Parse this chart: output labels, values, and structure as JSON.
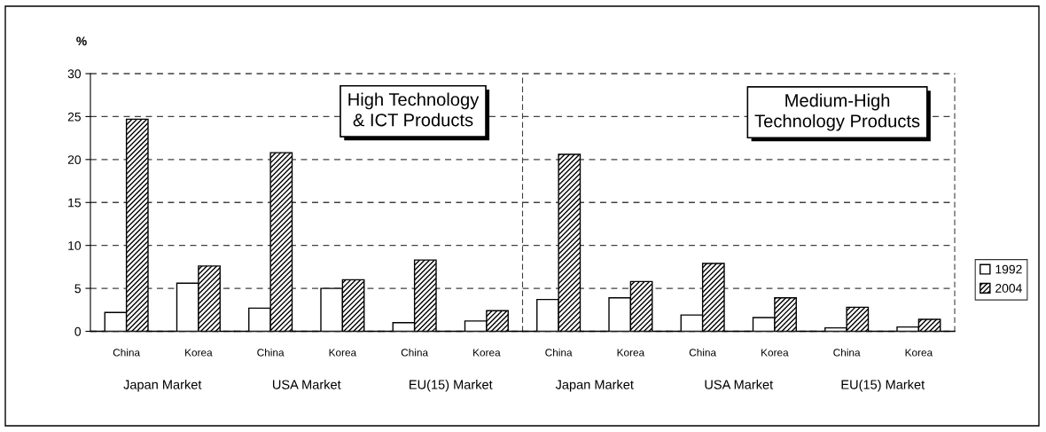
{
  "chart_data": [
    {
      "type": "bar",
      "ylabel": "%",
      "xlabel": "Japan Market",
      "categories": [
        "China",
        "Korea"
      ],
      "series": [
        {
          "color": "#ffffff",
          "values": [
            2.2,
            5.6
          ]
        },
        {
          "color": "#000000",
          "values": [
            24.7,
            7.6
          ]
        }
      ],
      "ylim": [
        0,
        30
      ],
      "yticks": [
        0,
        5,
        10,
        15,
        20,
        25,
        30
      ],
      "grid": "y"
    },
    {
      "type": "bar",
      "xlabel": "USA Market",
      "categories": [
        "China",
        "Korea"
      ],
      "series": [
        {
          "color": "#ffffff",
          "values": [
            2.7,
            5.0
          ]
        },
        {
          "color": "#000000",
          "values": [
            20.8,
            6.0
          ]
        }
      ],
      "ylim": [
        0,
        30
      ],
      "yticks": [
        0,
        5,
        10,
        15,
        20,
        25,
        30
      ],
      "grid": "y",
      "tick_labels": "x"
    },
    {
      "type": "bar",
      "title": "High Technology\n& ICT Products",
      "xlabel": "EU(15) Market",
      "categories": [
        "China",
        "Korea"
      ],
      "series": [
        {
          "color": "#ffffff",
          "values": [
            1.0,
            1.2
          ]
        },
        {
          "color": "#000000",
          "values": [
            8.3,
            2.4
          ]
        }
      ],
      "ylim": [
        0,
        30
      ],
      "yticks": [
        0,
        5,
        10,
        15,
        20,
        25,
        30
      ],
      "grid": "y",
      "tick_labels": "x"
    },
    {
      "type": "bar",
      "xlabel": "Japan Market",
      "categories": [
        "China",
        "Korea"
      ],
      "series": [
        {
          "color": "#ffffff",
          "values": [
            3.7,
            3.9
          ]
        },
        {
          "color": "#000000",
          "values": [
            20.6,
            5.8
          ]
        }
      ],
      "ylim": [
        0,
        30
      ],
      "yticks": [
        0,
        5,
        10,
        15,
        20,
        25,
        30
      ],
      "grid": "y",
      "tick_labels": "x"
    },
    {
      "type": "bar",
      "xlabel": "USA Market",
      "categories": [
        "China",
        "Korea"
      ],
      "series": [
        {
          "color": "#ffffff",
          "values": [
            1.9,
            1.6
          ]
        },
        {
          "color": "#000000",
          "values": [
            7.9,
            3.9
          ]
        }
      ],
      "ylim": [
        0,
        30
      ],
      "yticks": [
        0,
        5,
        10,
        15,
        20,
        25,
        30
      ],
      "grid": "y",
      "tick_labels": "x"
    },
    {
      "type": "bar",
      "title": "Medium-High\nTechnology Products",
      "xlabel": "EU(15) Market",
      "categories": [
        "China",
        "Korea"
      ],
      "series": [
        {
          "name": "1992",
          "color": "#ffffff",
          "values": [
            0.4,
            0.5
          ]
        },
        {
          "name": "2004",
          "color": "#000000",
          "values": [
            2.8,
            1.4
          ]
        }
      ],
      "ylim": [
        0,
        30
      ],
      "yticks": [
        0,
        5,
        10,
        15,
        20,
        25,
        30
      ],
      "grid": "y",
      "tick_labels": "x",
      "legend": "right"
    }
  ]
}
